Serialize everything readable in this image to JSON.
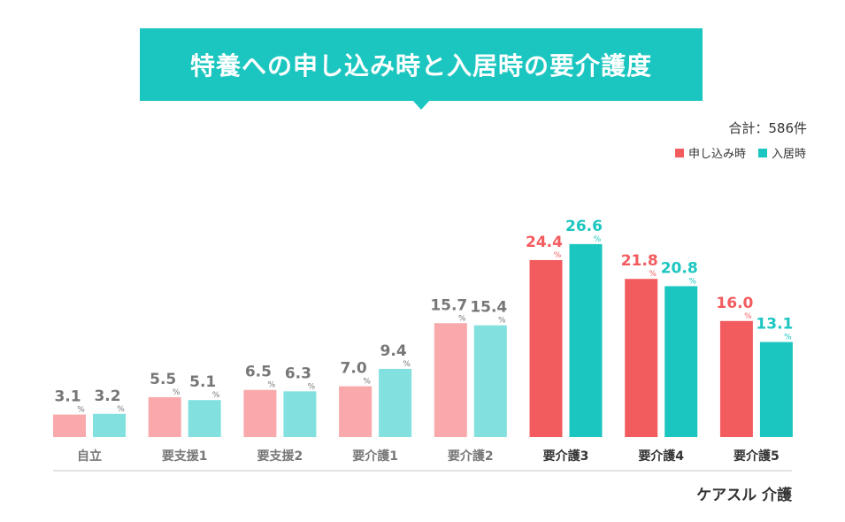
{
  "title": "特養への申し込み時と入居時の要介護度",
  "total_label": "合計：586件",
  "brand": "ケアスル 介護",
  "colors": {
    "teal": "#1cc6c0",
    "red": "#f35c5f",
    "light_red": "#f9a9ac",
    "light_teal": "#82e0de",
    "muted_text": "#777777",
    "dark_text": "#333333"
  },
  "chart_data": {
    "type": "bar",
    "categories": [
      "自立",
      "要支援1",
      "要支援2",
      "要介護1",
      "要介護2",
      "要介護3",
      "要介護4",
      "要介護5"
    ],
    "highlighted_categories": [
      "要介護3",
      "要介護4",
      "要介護5"
    ],
    "series": [
      {
        "name": "申し込み時",
        "values": [
          3.1,
          5.5,
          6.5,
          7.0,
          15.7,
          24.4,
          21.8,
          16.0
        ]
      },
      {
        "name": "入居時",
        "values": [
          3.2,
          5.1,
          6.3,
          9.4,
          15.4,
          26.6,
          20.8,
          13.1
        ]
      }
    ],
    "unit": "%",
    "ylim": [
      0,
      30
    ],
    "grid": false,
    "legend_position": "top-right"
  }
}
